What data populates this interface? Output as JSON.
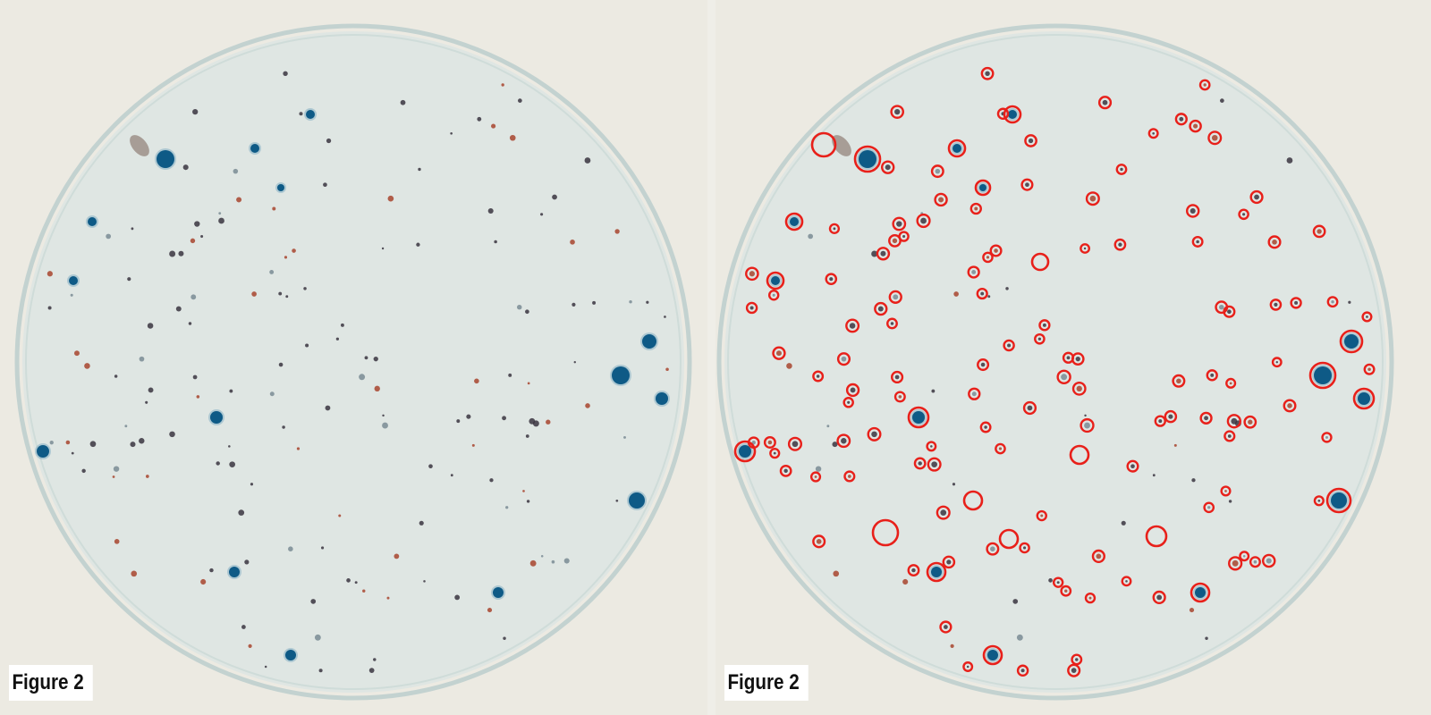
{
  "panels": [
    {
      "caption": "Figure 2",
      "annotated": false
    },
    {
      "caption": "Figure 2",
      "annotated": true
    }
  ],
  "colors": {
    "background": "#eeede6",
    "dish_fill": "#dfe6e3",
    "dish_rim": "#b9cccc",
    "colony_blue": "#0e5a86",
    "colony_dark": "#3a3440",
    "colony_red": "#a8442e",
    "marker_ring": "#e8201a"
  },
  "icons": [
    "petri-dish",
    "colony-marker-ring"
  ]
}
